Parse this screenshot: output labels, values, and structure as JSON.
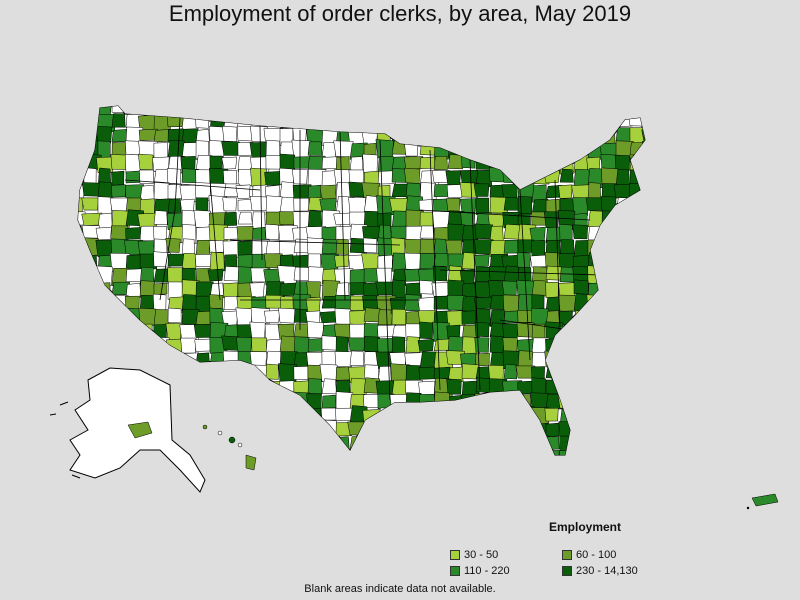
{
  "title": "Employment of order clerks, by area, May 2019",
  "legend": {
    "title": "Employment",
    "items": [
      {
        "label": "30 - 50",
        "color": "#a6d13c"
      },
      {
        "label": "60 - 100",
        "color": "#6e9c28"
      },
      {
        "label": "110 - 220",
        "color": "#2a8a2a"
      },
      {
        "label": "230 - 14,130",
        "color": "#0a5e0a"
      }
    ]
  },
  "footnote": "Blank areas indicate data not available.",
  "map_data": {
    "blank_color": "#ffffff",
    "background_color": "#dedede",
    "border_color": "#000000"
  }
}
